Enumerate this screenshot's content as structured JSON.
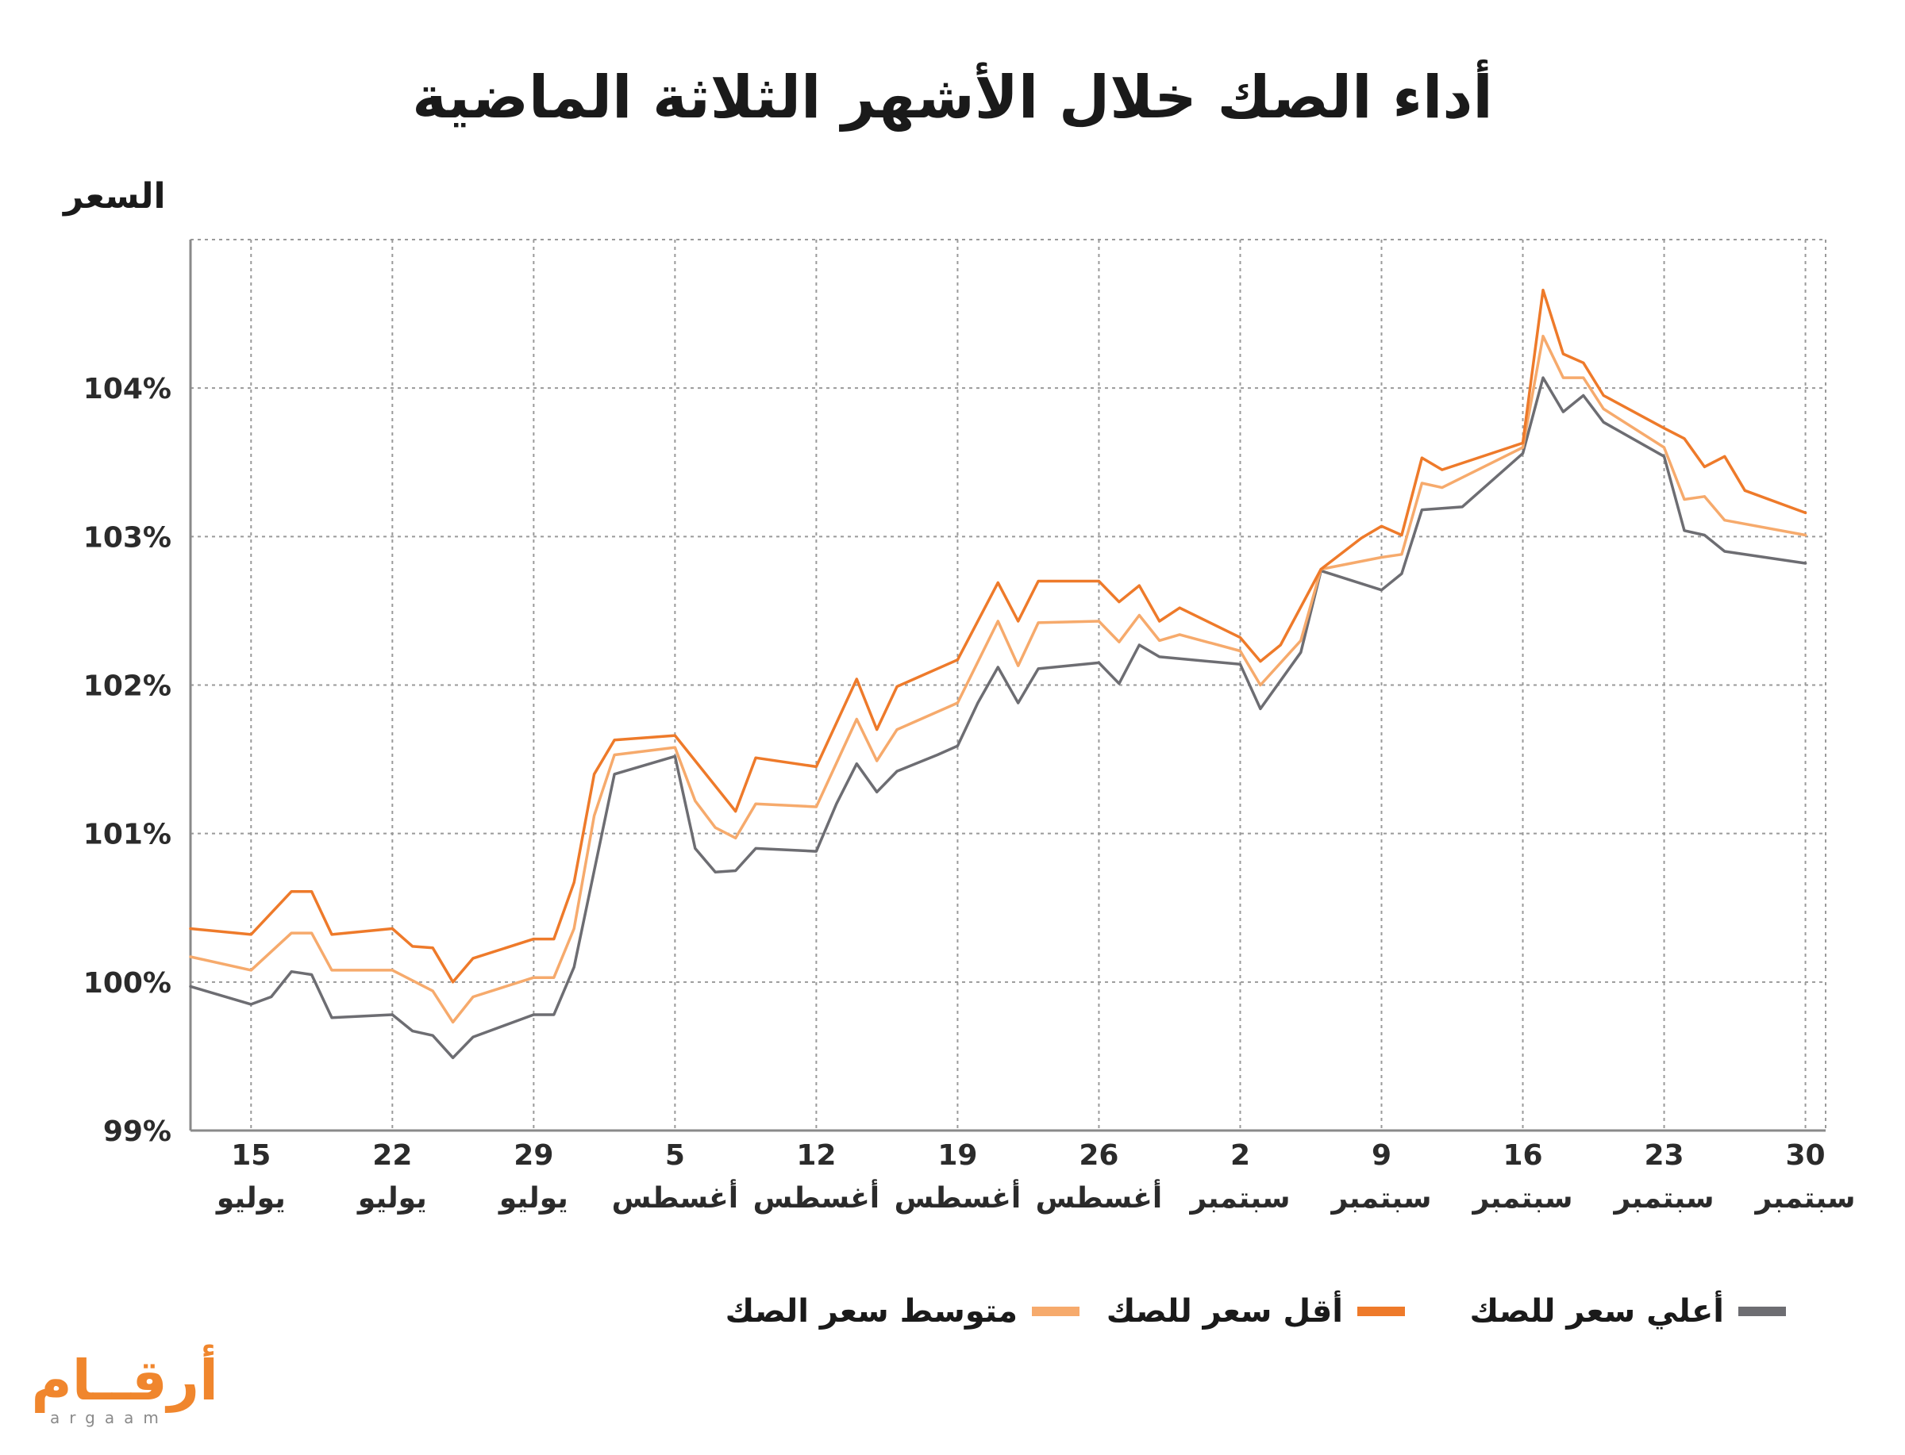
{
  "title": "أداء الصك خلال الأشهر الثلاثة الماضية",
  "brand": {
    "name_ar": "أرقــام",
    "name_en": "argaam",
    "color": "#f0862d"
  },
  "chart_data": {
    "type": "line",
    "title": "أداء الصك خلال الأشهر الثلاثة الماضية",
    "ylabel": "السعر",
    "xlabel": "",
    "ylim": [
      99,
      105
    ],
    "yticks": [
      "99%",
      "100%",
      "101%",
      "102%",
      "103%",
      "104%"
    ],
    "xlim": [
      0,
      81
    ],
    "xticks": [
      {
        "x": 3,
        "day": "15",
        "month": "يوليو"
      },
      {
        "x": 10,
        "day": "22",
        "month": "يوليو"
      },
      {
        "x": 17,
        "day": "29",
        "month": "يوليو"
      },
      {
        "x": 24,
        "day": "5",
        "month": "أغسطس"
      },
      {
        "x": 31,
        "day": "12",
        "month": "أغسطس"
      },
      {
        "x": 38,
        "day": "19",
        "month": "أغسطس"
      },
      {
        "x": 45,
        "day": "26",
        "month": "أغسطس"
      },
      {
        "x": 52,
        "day": "2",
        "month": "سبتمبر"
      },
      {
        "x": 59,
        "day": "9",
        "month": "سبتمبر"
      },
      {
        "x": 66,
        "day": "16",
        "month": "سبتمبر"
      },
      {
        "x": 73,
        "day": "23",
        "month": "سبتمبر"
      },
      {
        "x": 80,
        "day": "30",
        "month": "سبتمبر"
      }
    ],
    "grid": true,
    "legend_position": "bottom",
    "series": [
      {
        "name": "أعلي سعر للصك",
        "color": "#6d6d72",
        "points": [
          [
            0,
            99.97
          ],
          [
            3,
            99.85
          ],
          [
            4,
            99.9
          ],
          [
            5,
            100.07
          ],
          [
            6,
            100.05
          ],
          [
            7,
            99.76
          ],
          [
            10,
            99.78
          ],
          [
            11,
            99.67
          ],
          [
            12,
            99.64
          ],
          [
            13,
            99.49
          ],
          [
            14,
            99.63
          ],
          [
            17,
            99.78
          ],
          [
            18,
            99.78
          ],
          [
            19,
            100.1
          ],
          [
            20,
            100.75
          ],
          [
            21,
            101.4
          ],
          [
            24,
            101.52
          ],
          [
            25,
            100.9
          ],
          [
            26,
            100.74
          ],
          [
            27,
            100.75
          ],
          [
            28,
            100.9
          ],
          [
            31,
            100.88
          ],
          [
            32,
            101.2
          ],
          [
            33,
            101.47
          ],
          [
            34,
            101.28
          ],
          [
            35,
            101.42
          ],
          [
            37,
            101.53
          ],
          [
            38,
            101.59
          ],
          [
            39,
            101.88
          ],
          [
            40,
            102.12
          ],
          [
            41,
            101.88
          ],
          [
            42,
            102.11
          ],
          [
            45,
            102.15
          ],
          [
            46,
            102.01
          ],
          [
            47,
            102.27
          ],
          [
            48,
            102.19
          ],
          [
            52,
            102.14
          ],
          [
            53,
            101.84
          ],
          [
            55,
            102.22
          ],
          [
            56,
            102.77
          ],
          [
            59,
            102.64
          ],
          [
            60,
            102.75
          ],
          [
            61,
            103.18
          ],
          [
            63,
            103.2
          ],
          [
            66,
            103.56
          ],
          [
            67,
            104.07
          ],
          [
            68,
            103.84
          ],
          [
            69,
            103.95
          ],
          [
            70,
            103.77
          ],
          [
            73,
            103.54
          ],
          [
            74,
            103.04
          ],
          [
            75,
            103.01
          ],
          [
            76,
            102.9
          ],
          [
            80,
            102.82
          ]
        ]
      },
      {
        "name": "أقل سعر للصك",
        "color": "#ee7a2a",
        "points": [
          [
            0,
            100.36
          ],
          [
            3,
            100.32
          ],
          [
            5,
            100.61
          ],
          [
            6,
            100.61
          ],
          [
            7,
            100.32
          ],
          [
            10,
            100.36
          ],
          [
            11,
            100.24
          ],
          [
            12,
            100.23
          ],
          [
            13,
            100.0
          ],
          [
            14,
            100.16
          ],
          [
            17,
            100.29
          ],
          [
            18,
            100.29
          ],
          [
            19,
            100.67
          ],
          [
            20,
            101.4
          ],
          [
            21,
            101.63
          ],
          [
            24,
            101.66
          ],
          [
            27,
            101.15
          ],
          [
            28,
            101.51
          ],
          [
            31,
            101.45
          ],
          [
            33,
            102.04
          ],
          [
            34,
            101.7
          ],
          [
            35,
            101.99
          ],
          [
            38,
            102.17
          ],
          [
            40,
            102.69
          ],
          [
            41,
            102.43
          ],
          [
            42,
            102.7
          ],
          [
            45,
            102.7
          ],
          [
            46,
            102.56
          ],
          [
            47,
            102.67
          ],
          [
            48,
            102.43
          ],
          [
            49,
            102.52
          ],
          [
            52,
            102.32
          ],
          [
            53,
            102.16
          ],
          [
            54,
            102.27
          ],
          [
            56,
            102.78
          ],
          [
            58,
            102.99
          ],
          [
            59,
            103.07
          ],
          [
            60,
            103.01
          ],
          [
            61,
            103.53
          ],
          [
            62,
            103.45
          ],
          [
            66,
            103.63
          ],
          [
            67,
            104.66
          ],
          [
            68,
            104.23
          ],
          [
            69,
            104.17
          ],
          [
            70,
            103.95
          ],
          [
            73,
            103.73
          ],
          [
            74,
            103.66
          ],
          [
            75,
            103.47
          ],
          [
            76,
            103.54
          ],
          [
            77,
            103.31
          ],
          [
            80,
            103.16
          ]
        ]
      },
      {
        "name": "متوسط سعر الصك",
        "color": "#f6aa6c",
        "points": [
          [
            0,
            100.17
          ],
          [
            3,
            100.08
          ],
          [
            5,
            100.33
          ],
          [
            6,
            100.33
          ],
          [
            7,
            100.08
          ],
          [
            10,
            100.08
          ],
          [
            12,
            99.94
          ],
          [
            13,
            99.73
          ],
          [
            14,
            99.9
          ],
          [
            17,
            100.03
          ],
          [
            18,
            100.03
          ],
          [
            19,
            100.36
          ],
          [
            20,
            101.12
          ],
          [
            21,
            101.53
          ],
          [
            24,
            101.58
          ],
          [
            25,
            101.22
          ],
          [
            26,
            101.04
          ],
          [
            27,
            100.97
          ],
          [
            28,
            101.2
          ],
          [
            31,
            101.18
          ],
          [
            33,
            101.77
          ],
          [
            34,
            101.49
          ],
          [
            35,
            101.7
          ],
          [
            38,
            101.88
          ],
          [
            40,
            102.43
          ],
          [
            41,
            102.13
          ],
          [
            42,
            102.42
          ],
          [
            45,
            102.43
          ],
          [
            46,
            102.29
          ],
          [
            47,
            102.47
          ],
          [
            48,
            102.3
          ],
          [
            49,
            102.34
          ],
          [
            52,
            102.23
          ],
          [
            53,
            102.0
          ],
          [
            55,
            102.3
          ],
          [
            56,
            102.78
          ],
          [
            59,
            102.86
          ],
          [
            60,
            102.88
          ],
          [
            61,
            103.36
          ],
          [
            62,
            103.33
          ],
          [
            66,
            103.6
          ],
          [
            67,
            104.35
          ],
          [
            68,
            104.07
          ],
          [
            69,
            104.07
          ],
          [
            70,
            103.86
          ],
          [
            73,
            103.6
          ],
          [
            74,
            103.25
          ],
          [
            75,
            103.27
          ],
          [
            76,
            103.11
          ],
          [
            80,
            103.01
          ]
        ]
      }
    ]
  }
}
